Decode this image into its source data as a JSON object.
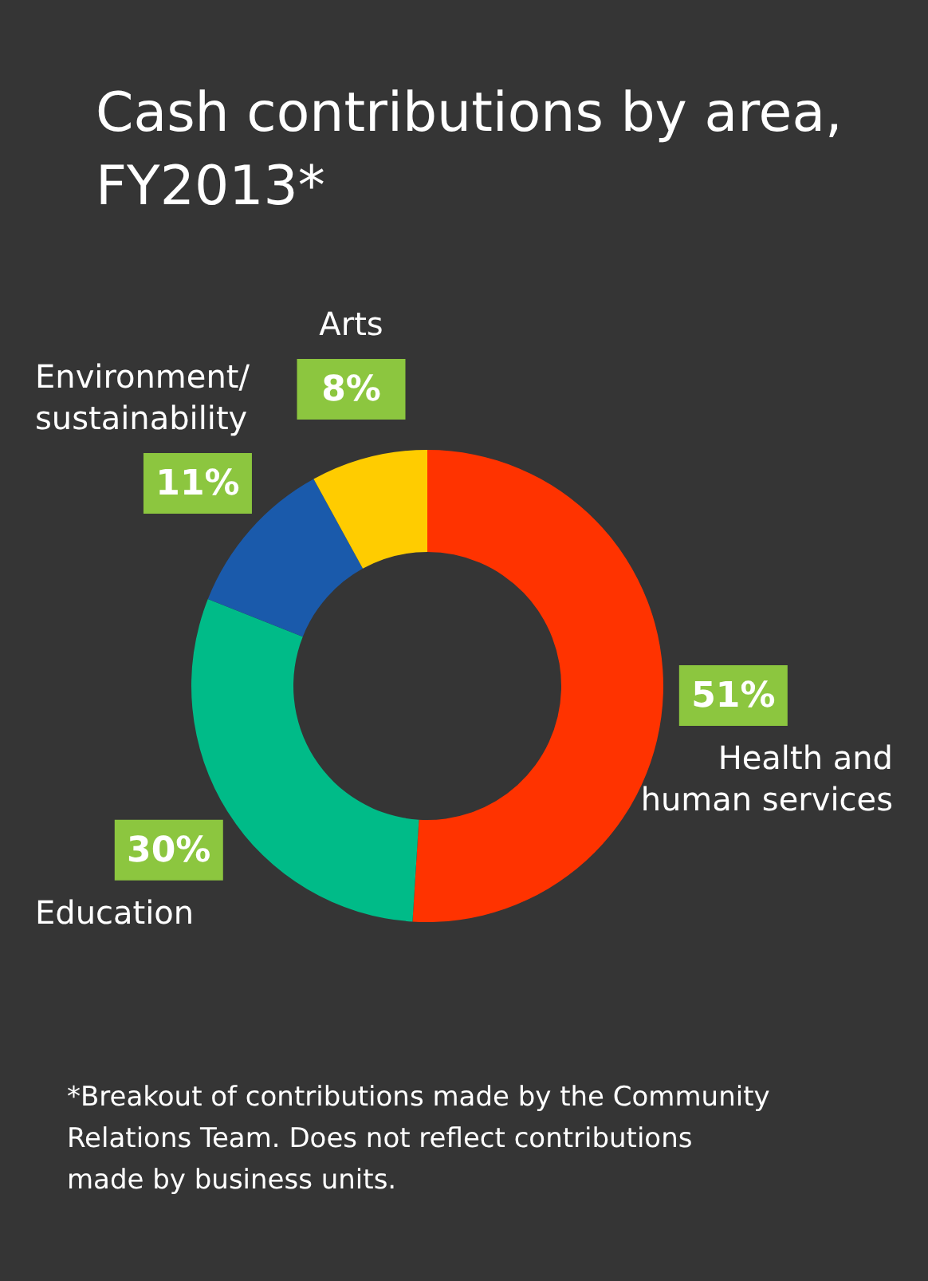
{
  "chart_data": {
    "type": "donut",
    "title": "Cash contributions by area, FY2013*",
    "categories": [
      "Health and human services",
      "Education",
      "Environment/sustainability",
      "Arts"
    ],
    "values": [
      51,
      30,
      11,
      8
    ],
    "colors": [
      "#ff3300",
      "#00bb88",
      "#1a5aab",
      "#ffcc00"
    ],
    "value_labels": [
      "51%",
      "30%",
      "11%",
      "8%"
    ],
    "annotations": [
      "*Breakout of contributions made by the Community Relations Team. Does not reflect contributions made by business units."
    ]
  }
}
